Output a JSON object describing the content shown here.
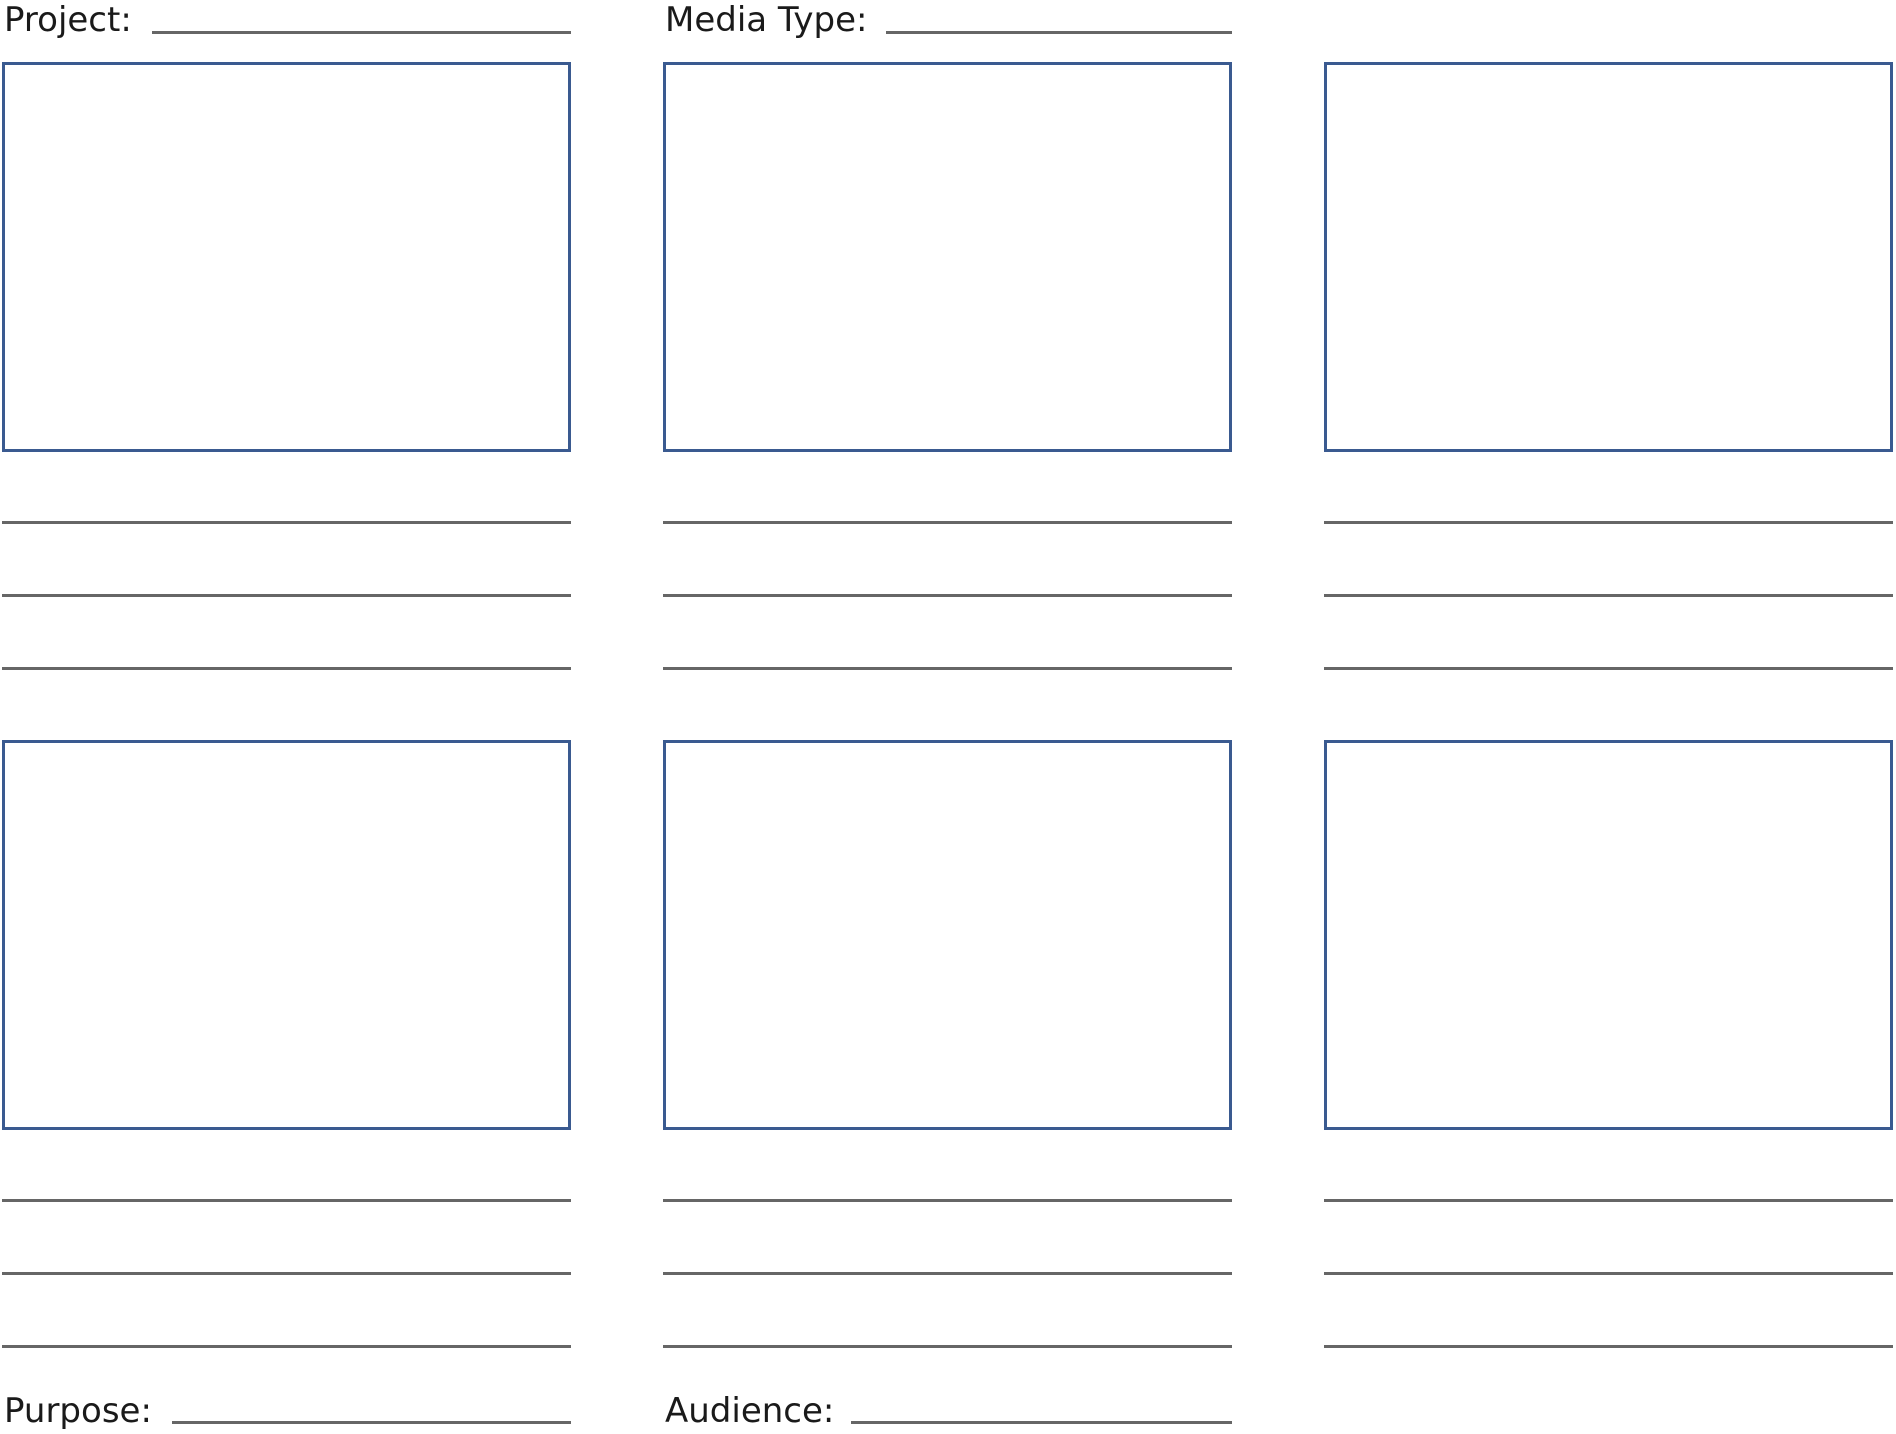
{
  "header": {
    "project_label": "Project:",
    "media_type_label": "Media Type:"
  },
  "footer": {
    "purpose_label": "Purpose:",
    "audience_label": "Audience:"
  },
  "colors": {
    "frame_border": "#3a5a90",
    "rule_line": "#666666"
  },
  "panels": 6,
  "lines_per_panel": 3
}
